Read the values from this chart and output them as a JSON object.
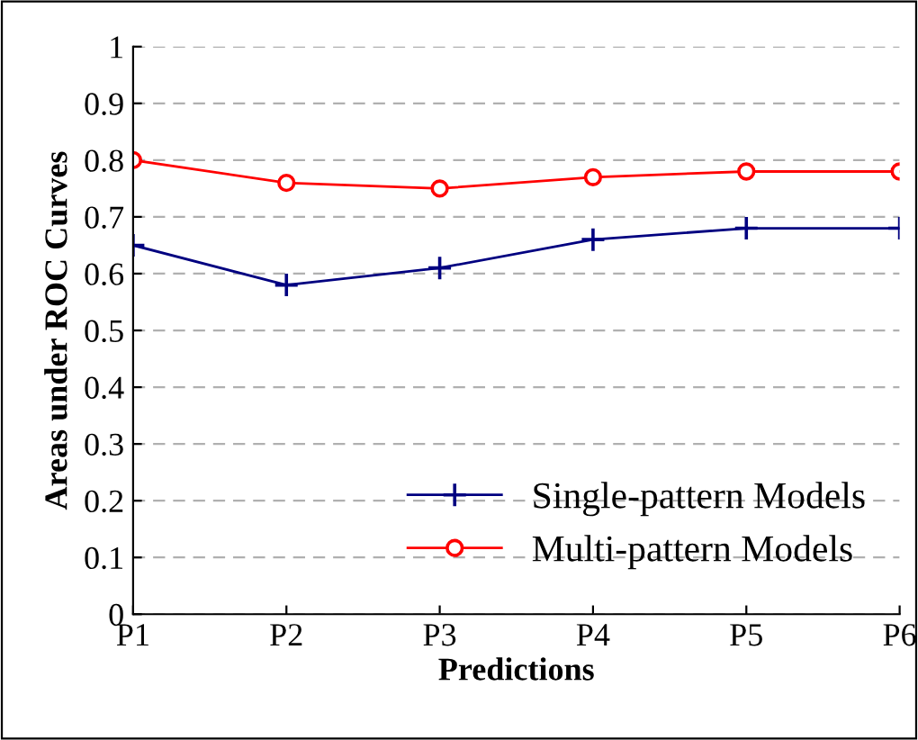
{
  "chart_data": {
    "type": "line",
    "xlabel": "Predictions",
    "ylabel": "Areas under ROC Curves",
    "categories": [
      "P1",
      "P2",
      "P3",
      "P4",
      "P5",
      "P6"
    ],
    "series": [
      {
        "name": "Single-pattern Models",
        "color": "#000080",
        "marker": "cross",
        "values": [
          0.65,
          0.58,
          0.61,
          0.66,
          0.68,
          0.68
        ]
      },
      {
        "name": "Multi-pattern Models",
        "color": "#ff0000",
        "marker": "circle",
        "values": [
          0.8,
          0.76,
          0.75,
          0.77,
          0.78,
          0.78
        ]
      }
    ],
    "ylim": [
      0,
      1
    ],
    "yticks": [
      0,
      0.1,
      0.2,
      0.3,
      0.4,
      0.5,
      0.6,
      0.7,
      0.8,
      0.9,
      1
    ],
    "grid": "y",
    "legend": "bottom right",
    "line_style": "solid"
  }
}
